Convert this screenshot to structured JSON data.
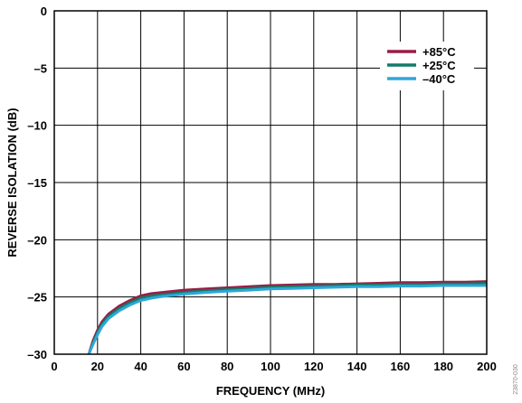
{
  "chart_data": {
    "type": "line",
    "xlabel": "FREQUENCY (MHz)",
    "ylabel": "REVERSE ISOLATION (dB)",
    "xlim": [
      0,
      200
    ],
    "ylim": [
      -30,
      0
    ],
    "x_ticks": [
      "0",
      "20",
      "40",
      "60",
      "80",
      "100",
      "120",
      "140",
      "160",
      "180",
      "200"
    ],
    "y_ticks": [
      "0",
      "–5",
      "–10",
      "–15",
      "–20",
      "–25",
      "–30"
    ],
    "grid": true,
    "legend_position": "top-right",
    "figure_id": "23870-030",
    "series": [
      {
        "name": "+85°C",
        "color": "#9b1c46",
        "x": [
          16,
          18,
          20,
          22,
          25,
          30,
          35,
          40,
          45,
          50,
          60,
          70,
          80,
          90,
          100,
          110,
          120,
          130,
          140,
          150,
          160,
          170,
          180,
          190,
          200
        ],
        "y": [
          -30,
          -28.8,
          -27.9,
          -27.2,
          -26.5,
          -25.8,
          -25.3,
          -24.9,
          -24.7,
          -24.6,
          -24.4,
          -24.3,
          -24.2,
          -24.1,
          -24.0,
          -23.95,
          -23.9,
          -23.9,
          -23.85,
          -23.8,
          -23.75,
          -23.75,
          -23.7,
          -23.7,
          -23.65
        ]
      },
      {
        "name": "+25°C",
        "color": "#137b6b",
        "x": [
          16,
          18,
          20,
          22,
          25,
          30,
          35,
          40,
          45,
          50,
          60,
          70,
          80,
          90,
          100,
          110,
          120,
          130,
          140,
          150,
          160,
          170,
          180,
          190,
          200
        ],
        "y": [
          -30,
          -29.0,
          -28.1,
          -27.4,
          -26.7,
          -26.0,
          -25.5,
          -25.1,
          -24.9,
          -24.8,
          -24.6,
          -24.45,
          -24.35,
          -24.25,
          -24.15,
          -24.1,
          -24.05,
          -24.0,
          -23.95,
          -23.95,
          -23.9,
          -23.9,
          -23.85,
          -23.85,
          -23.8
        ]
      },
      {
        "name": "–40°C",
        "color": "#2ea7d9",
        "x": [
          16,
          18,
          20,
          22,
          25,
          30,
          35,
          40,
          45,
          50,
          60,
          70,
          80,
          90,
          100,
          110,
          120,
          130,
          140,
          150,
          160,
          170,
          180,
          190,
          200
        ],
        "y": [
          -30,
          -29.1,
          -28.3,
          -27.6,
          -26.9,
          -26.2,
          -25.7,
          -25.3,
          -25.1,
          -24.95,
          -24.75,
          -24.6,
          -24.5,
          -24.4,
          -24.3,
          -24.25,
          -24.2,
          -24.15,
          -24.1,
          -24.1,
          -24.05,
          -24.05,
          -24.0,
          -24.0,
          -24.0
        ]
      }
    ]
  }
}
